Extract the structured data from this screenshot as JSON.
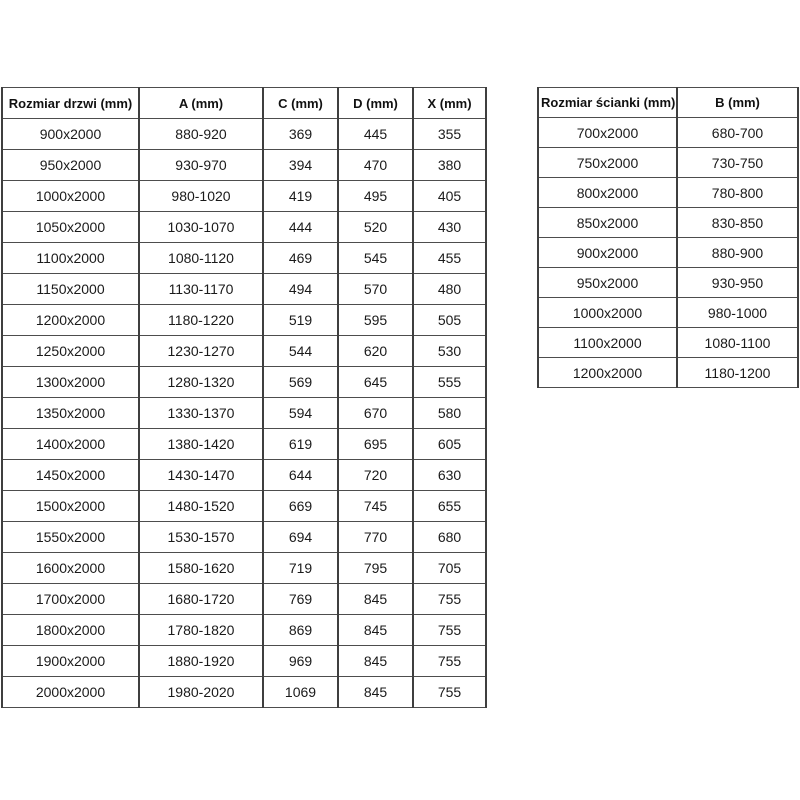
{
  "colors": {
    "background": "#ffffff",
    "border_vertical": "#3f3f3f",
    "border_horizontal": "#4d4d4d",
    "text": "#1a1a1a"
  },
  "doors_table": {
    "headers": [
      "Rozmiar drzwi (mm)",
      "A (mm)",
      "C (mm)",
      "D (mm)",
      "X (mm)"
    ],
    "rows": [
      [
        "900x2000",
        "880-920",
        "369",
        "445",
        "355"
      ],
      [
        "950x2000",
        "930-970",
        "394",
        "470",
        "380"
      ],
      [
        "1000x2000",
        "980-1020",
        "419",
        "495",
        "405"
      ],
      [
        "1050x2000",
        "1030-1070",
        "444",
        "520",
        "430"
      ],
      [
        "1100x2000",
        "1080-1120",
        "469",
        "545",
        "455"
      ],
      [
        "1150x2000",
        "1130-1170",
        "494",
        "570",
        "480"
      ],
      [
        "1200x2000",
        "1180-1220",
        "519",
        "595",
        "505"
      ],
      [
        "1250x2000",
        "1230-1270",
        "544",
        "620",
        "530"
      ],
      [
        "1300x2000",
        "1280-1320",
        "569",
        "645",
        "555"
      ],
      [
        "1350x2000",
        "1330-1370",
        "594",
        "670",
        "580"
      ],
      [
        "1400x2000",
        "1380-1420",
        "619",
        "695",
        "605"
      ],
      [
        "1450x2000",
        "1430-1470",
        "644",
        "720",
        "630"
      ],
      [
        "1500x2000",
        "1480-1520",
        "669",
        "745",
        "655"
      ],
      [
        "1550x2000",
        "1530-1570",
        "694",
        "770",
        "680"
      ],
      [
        "1600x2000",
        "1580-1620",
        "719",
        "795",
        "705"
      ],
      [
        "1700x2000",
        "1680-1720",
        "769",
        "845",
        "755"
      ],
      [
        "1800x2000",
        "1780-1820",
        "869",
        "845",
        "755"
      ],
      [
        "1900x2000",
        "1880-1920",
        "969",
        "845",
        "755"
      ],
      [
        "2000x2000",
        "1980-2020",
        "1069",
        "845",
        "755"
      ]
    ]
  },
  "walls_table": {
    "headers": [
      "Rozmiar ścianki (mm)",
      "B (mm)"
    ],
    "rows": [
      [
        "700x2000",
        "680-700"
      ],
      [
        "750x2000",
        "730-750"
      ],
      [
        "800x2000",
        "780-800"
      ],
      [
        "850x2000",
        "830-850"
      ],
      [
        "900x2000",
        "880-900"
      ],
      [
        "950x2000",
        "930-950"
      ],
      [
        "1000x2000",
        "980-1000"
      ],
      [
        "1100x2000",
        "1080-1100"
      ],
      [
        "1200x2000",
        "1180-1200"
      ]
    ]
  }
}
